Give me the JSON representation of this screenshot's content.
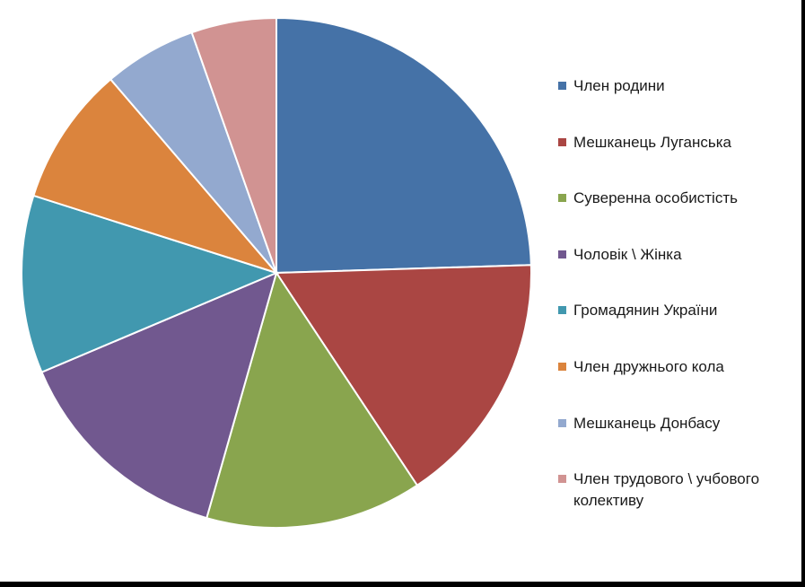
{
  "chart_data": {
    "type": "pie",
    "title": "",
    "categories": [
      "Член родини",
      "Мешканець Луганська",
      "Суверенна особистість",
      "Чоловік \\ Жінка",
      "Громадянин України",
      "Член дружнього кола",
      "Мешканець Донбасу",
      "Член трудового \\ учбового колективу"
    ],
    "values": [
      25,
      16.5,
      14,
      14.5,
      11.5,
      9,
      6,
      5.5
    ],
    "colors": [
      "#4572A7",
      "#AA4643",
      "#89A54E",
      "#71588F",
      "#4198AF",
      "#DB843D",
      "#93A9CF",
      "#D19392"
    ],
    "legend_position": "right"
  }
}
